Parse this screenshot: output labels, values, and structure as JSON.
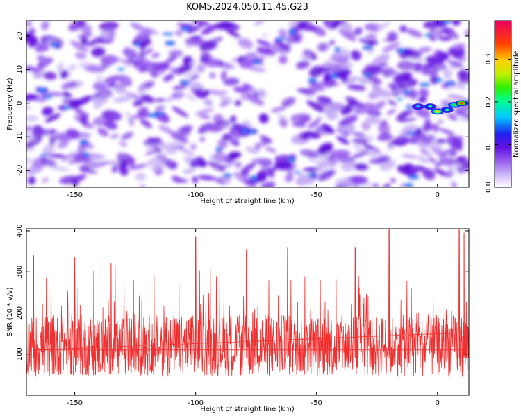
{
  "title": "KOM5.2024.050.11.45.G23",
  "chart_data": [
    {
      "type": "heatmap",
      "xlabel": "Height of straight line (km)",
      "ylabel": "Frequency (Hz)",
      "xlim": [
        -170,
        13
      ],
      "ylim": [
        -25,
        24.5
      ],
      "xticks": [
        -150,
        -100,
        -50,
        0
      ],
      "yticks": [
        20,
        10,
        0,
        -10,
        -20
      ],
      "colorbar": {
        "label": "Normalized spectral amplitude",
        "range": [
          0.0,
          0.39
        ],
        "ticks": [
          0.0,
          0.1,
          0.2,
          0.3
        ],
        "colors": [
          "#ffffff",
          "#a070f0",
          "#6010e0",
          "#2020f0",
          "#00c8ff",
          "#00ff90",
          "#30f000",
          "#c0f000",
          "#ffd000",
          "#ff4000",
          "#f00060"
        ]
      },
      "features": [
        {
          "x": -8,
          "y": -1,
          "value": 0.15
        },
        {
          "x": -3,
          "y": -1,
          "value": 0.18
        },
        {
          "x": 0,
          "y": -2.5,
          "value": 0.3
        },
        {
          "x": 4,
          "y": -2,
          "value": 0.2
        },
        {
          "x": 7,
          "y": -0.5,
          "value": 0.25
        },
        {
          "x": 10,
          "y": 0,
          "value": 0.36
        }
      ]
    },
    {
      "type": "line",
      "xlabel": "Height of straight line (km)",
      "ylabel": "SNR (10 * v/v)",
      "xlim": [
        -170,
        13
      ],
      "ylim": [
        0,
        405
      ],
      "xticks": [
        -150,
        -100,
        -50,
        0
      ],
      "yticks": [
        100,
        200,
        300,
        400
      ],
      "series": [
        {
          "color": "#f03030",
          "peaks": [
            {
              "x": -167,
              "y": 340
            },
            {
              "x": -150,
              "y": 335
            },
            {
              "x": -135,
              "y": 320
            },
            {
              "x": -100,
              "y": 385
            },
            {
              "x": -79,
              "y": 355
            },
            {
              "x": -62,
              "y": 360
            },
            {
              "x": -34,
              "y": 360
            },
            {
              "x": -20,
              "y": 405
            },
            {
              "x": 9,
              "y": 405
            },
            {
              "x": 11,
              "y": 395
            }
          ]
        }
      ]
    }
  ]
}
